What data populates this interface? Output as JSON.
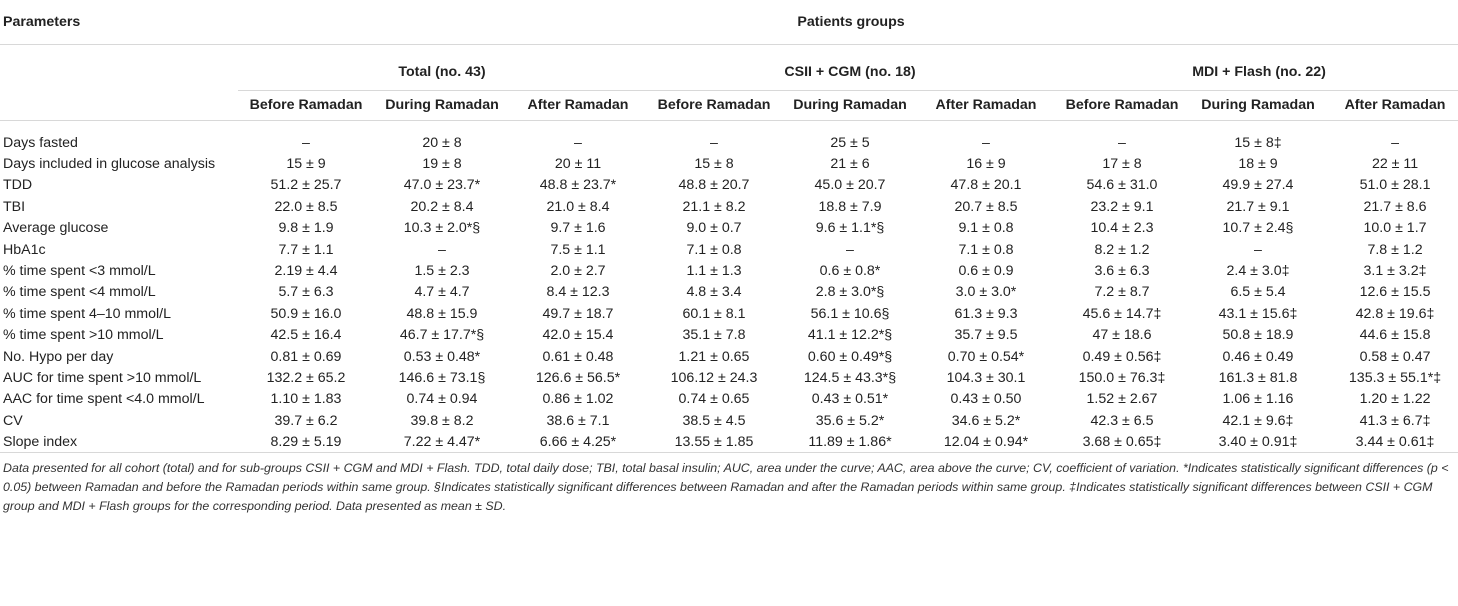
{
  "header": {
    "parameters": "Parameters",
    "patients_groups": "Patients groups",
    "groups": [
      {
        "label": "Total (no. 43)"
      },
      {
        "label": "CSII + CGM (no. 18)"
      },
      {
        "label": "MDI + Flash (no. 22)"
      }
    ],
    "periods": [
      "Before Ramadan",
      "During Ramadan",
      "After Ramadan",
      "Before Ramadan",
      "During Ramadan",
      "After Ramadan",
      "Before Ramadan",
      "During Ramadan",
      "After Ramadan"
    ]
  },
  "rows": [
    {
      "param": "Days fasted",
      "cells": [
        "–",
        "20 ± 8",
        "–",
        "–",
        "25 ± 5",
        "–",
        "–",
        "15 ± 8‡",
        "–"
      ]
    },
    {
      "param": "Days included in glucose analysis",
      "cells": [
        "15 ± 9",
        "19 ± 8",
        "20 ± 11",
        "15 ± 8",
        "21 ± 6",
        "16 ± 9",
        "17 ± 8",
        "18 ± 9",
        "22 ± 11"
      ]
    },
    {
      "param": "TDD",
      "cells": [
        "51.2 ± 25.7",
        "47.0 ± 23.7*",
        "48.8 ± 23.7*",
        "48.8 ± 20.7",
        "45.0 ± 20.7",
        "47.8 ± 20.1",
        "54.6 ± 31.0",
        "49.9 ± 27.4",
        "51.0 ± 28.1"
      ]
    },
    {
      "param": "TBI",
      "cells": [
        "22.0 ± 8.5",
        "20.2 ± 8.4",
        "21.0 ± 8.4",
        "21.1 ± 8.2",
        "18.8 ± 7.9",
        "20.7 ± 8.5",
        "23.2 ± 9.1",
        "21.7 ± 9.1",
        "21.7 ± 8.6"
      ]
    },
    {
      "param": "Average glucose",
      "cells": [
        "9.8 ± 1.9",
        "10.3 ± 2.0*§",
        "9.7 ± 1.6",
        "9.0 ± 0.7",
        "9.6 ± 1.1*§",
        "9.1 ± 0.8",
        "10.4 ± 2.3",
        "10.7 ± 2.4§",
        "10.0 ± 1.7"
      ]
    },
    {
      "param": "HbA1c",
      "cells": [
        "7.7 ± 1.1",
        "–",
        "7.5 ± 1.1",
        "7.1 ± 0.8",
        "–",
        "7.1 ± 0.8",
        "8.2 ± 1.2",
        "–",
        "7.8 ± 1.2"
      ]
    },
    {
      "param": "% time spent <3 mmol/L",
      "cells": [
        "2.19 ± 4.4",
        "1.5 ± 2.3",
        "2.0 ± 2.7",
        "1.1 ± 1.3",
        "0.6 ± 0.8*",
        "0.6 ± 0.9",
        "3.6 ± 6.3",
        "2.4 ± 3.0‡",
        "3.1 ± 3.2‡"
      ]
    },
    {
      "param": "% time spent <4 mmol/L",
      "cells": [
        "5.7 ± 6.3",
        "4.7 ± 4.7",
        "8.4 ± 12.3",
        "4.8 ± 3.4",
        "2.8 ± 3.0*§",
        "3.0 ± 3.0*",
        "7.2 ± 8.7",
        "6.5 ± 5.4",
        "12.6 ± 15.5"
      ]
    },
    {
      "param": "% time spent 4–10 mmol/L",
      "cells": [
        "50.9 ± 16.0",
        "48.8 ± 15.9",
        "49.7 ± 18.7",
        "60.1 ± 8.1",
        "56.1 ± 10.6§",
        "61.3 ± 9.3",
        "45.6 ± 14.7‡",
        "43.1 ± 15.6‡",
        "42.8 ± 19.6‡"
      ]
    },
    {
      "param": "% time spent >10 mmol/L",
      "cells": [
        "42.5 ± 16.4",
        "46.7 ± 17.7*§",
        "42.0 ± 15.4",
        "35.1 ± 7.8",
        "41.1 ± 12.2*§",
        "35.7 ± 9.5",
        "47 ± 18.6",
        "50.8 ± 18.9",
        "44.6 ± 15.8"
      ]
    },
    {
      "param": "No. Hypo per day",
      "cells": [
        "0.81 ± 0.69",
        "0.53 ± 0.48*",
        "0.61 ± 0.48",
        "1.21 ± 0.65",
        "0.60 ± 0.49*§",
        "0.70 ± 0.54*",
        "0.49 ± 0.56‡",
        "0.46 ± 0.49",
        "0.58 ± 0.47"
      ]
    },
    {
      "param": "AUC for time spent >10 mmol/L",
      "cells": [
        "132.2 ± 65.2",
        "146.6 ± 73.1§",
        "126.6 ± 56.5*",
        "106.12 ± 24.3",
        "124.5 ± 43.3*§",
        "104.3 ± 30.1",
        "150.0 ± 76.3‡",
        "161.3 ± 81.8",
        "135.3 ± 55.1*‡"
      ]
    },
    {
      "param": "AAC for time spent <4.0 mmol/L",
      "cells": [
        "1.10 ± 1.83",
        "0.74 ± 0.94",
        "0.86 ± 1.02",
        "0.74 ± 0.65",
        "0.43 ± 0.51*",
        "0.43 ± 0.50",
        "1.52 ± 2.67",
        "1.06 ± 1.16",
        "1.20 ± 1.22"
      ]
    },
    {
      "param": "CV",
      "cells": [
        "39.7 ± 6.2",
        "39.8 ± 8.2",
        "38.6 ± 7.1",
        "38.5 ± 4.5",
        "35.6 ± 5.2*",
        "34.6 ± 5.2*",
        "42.3 ± 6.5",
        "42.1 ± 9.6‡",
        "41.3 ± 6.7‡"
      ]
    },
    {
      "param": "Slope index",
      "cells": [
        "8.29 ± 5.19",
        "7.22 ± 4.47*",
        "6.66 ± 4.25*",
        "13.55 ± 1.85",
        "11.89 ± 1.86*",
        "12.04 ± 0.94*",
        "3.68 ± 0.65‡",
        "3.40 ± 0.91‡",
        "3.44 ± 0.61‡"
      ]
    }
  ],
  "footnote": "Data presented for all cohort (total) and for sub-groups CSII + CGM and MDI + Flash. TDD, total daily dose; TBI, total basal insulin; AUC, area under the curve; AAC, area above the curve; CV, coefficient of variation. *Indicates statistically significant differences (p < 0.05) between Ramadan and before the Ramadan periods within same group. §Indicates statistically significant differences between Ramadan and after the Ramadan periods within same group. ‡Indicates statistically significant differences between CSII + CGM group and MDI + Flash groups for the corresponding period. Data presented as mean ± SD."
}
